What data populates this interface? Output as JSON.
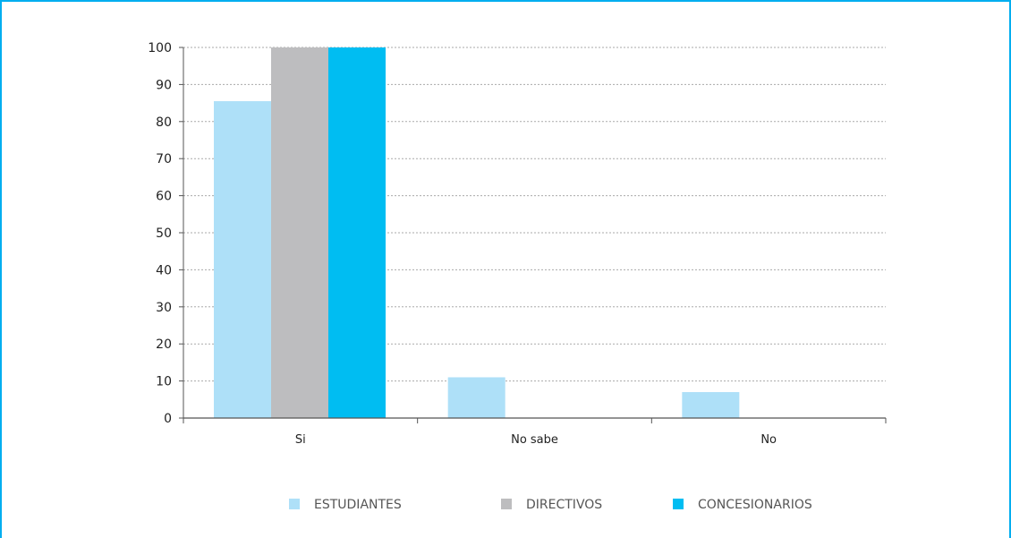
{
  "chart_data": {
    "type": "bar",
    "title": "",
    "xlabel": "",
    "ylabel": "",
    "categories": [
      "Si",
      "No sabe",
      "No"
    ],
    "ylim": [
      0,
      100
    ],
    "yticks": [
      0,
      10,
      20,
      30,
      40,
      50,
      60,
      70,
      80,
      90,
      100
    ],
    "grid": true,
    "legend_position": "bottom",
    "series": [
      {
        "name": "ESTUDIANTES",
        "color": "#aee0f8",
        "values": [
          85.5,
          11,
          7
        ]
      },
      {
        "name": "DIRECTIVOS",
        "color": "#bdbdbf",
        "values": [
          100,
          0,
          0
        ]
      },
      {
        "name": "CONCESIONARIOS",
        "color": "#00bdf2",
        "values": [
          100,
          0,
          0
        ]
      }
    ]
  },
  "colors": {
    "frame_border": "#00aeef",
    "axis": "#555555",
    "grid": "#aaaaaa"
  }
}
